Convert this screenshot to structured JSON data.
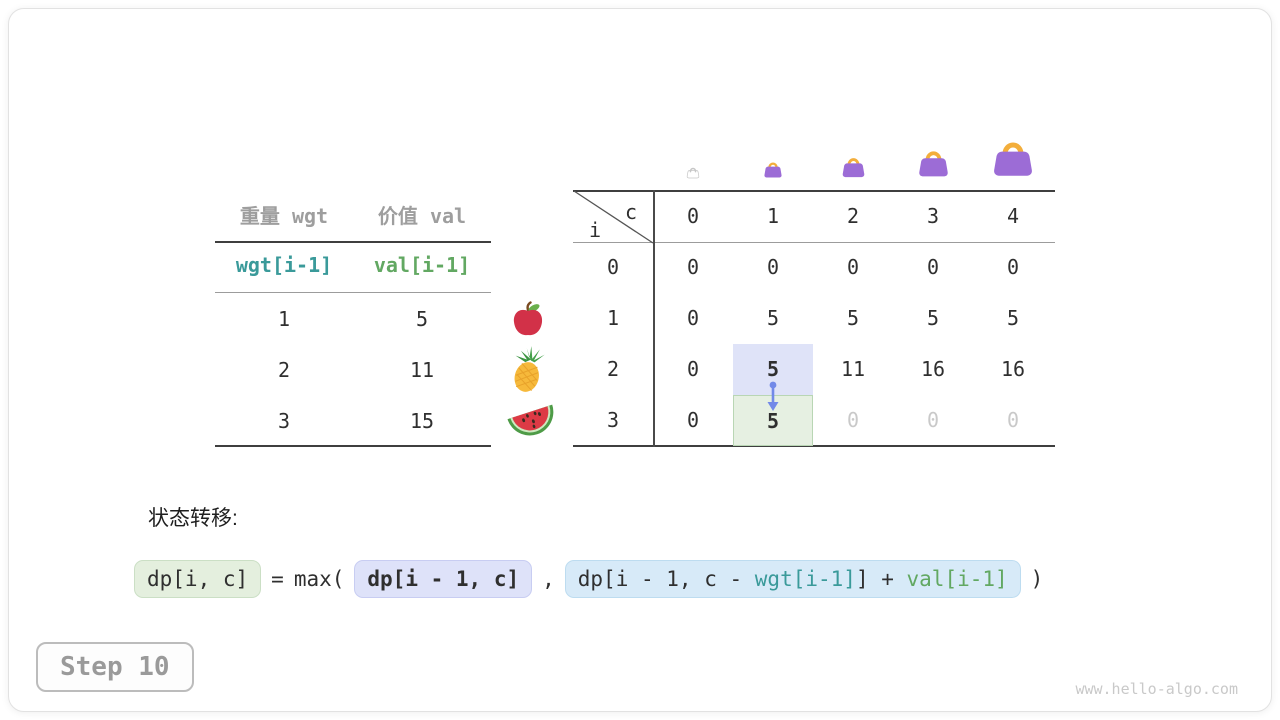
{
  "items_table": {
    "headers": [
      "重量 wgt",
      "价值 val"
    ],
    "code_headers": [
      {
        "text": "wgt[i-1]",
        "color": "teal"
      },
      {
        "text": "val[i-1]",
        "color": "green"
      }
    ],
    "rows": [
      [
        "1",
        "5"
      ],
      [
        "2",
        "11"
      ],
      [
        "3",
        "15"
      ]
    ]
  },
  "fruits": [
    "apple",
    "pineapple",
    "watermelon"
  ],
  "bags": {
    "sizes": [
      14,
      20,
      25,
      33,
      44
    ],
    "empty_index": 0
  },
  "dp_table": {
    "corner": {
      "col_var": "c",
      "row_var": "i"
    },
    "col_headers": [
      "0",
      "1",
      "2",
      "3",
      "4"
    ],
    "row_headers": [
      "0",
      "1",
      "2",
      "3"
    ],
    "values": [
      [
        "0",
        "0",
        "0",
        "0",
        "0"
      ],
      [
        "0",
        "5",
        "5",
        "5",
        "5"
      ],
      [
        "0",
        "5",
        "11",
        "16",
        "16"
      ],
      [
        "0",
        "5",
        "0",
        "0",
        "0"
      ]
    ],
    "cell_styles": {
      "2,1": "hl-blue",
      "3,1": "hl-green",
      "3,2": "faded",
      "3,3": "faded",
      "3,4": "faded"
    }
  },
  "formula": {
    "label": "状态转移:",
    "lhs": "dp[i, c]",
    "equals": "=",
    "max_open": "max(",
    "arg1": "dp[i - 1, c]",
    "comma": ",",
    "arg2_segments": [
      {
        "text": "dp[i - 1, c - ",
        "color": "dark"
      },
      {
        "text": "wgt[i-1]",
        "color": "teal"
      },
      {
        "text": "] + ",
        "color": "dark"
      },
      {
        "text": "val[i-1]",
        "color": "green"
      }
    ],
    "close": ")"
  },
  "step_badge": "Step 10",
  "watermark": "www.hello-algo.com",
  "colors": {
    "teal": "#3a9a9a",
    "green": "#62a862",
    "hl_blue": "#dfe3f8",
    "hl_green": "#e6f0e2",
    "hl_green_border": "#b9d6b4",
    "formula_green": "#e4efde",
    "formula_lavender": "#dee2f9",
    "formula_blue": "#d7eaf8",
    "arrow_blue": "#7289e8",
    "bag_purple": "#9c6cd6",
    "bag_handle": "#f3ae3b"
  }
}
